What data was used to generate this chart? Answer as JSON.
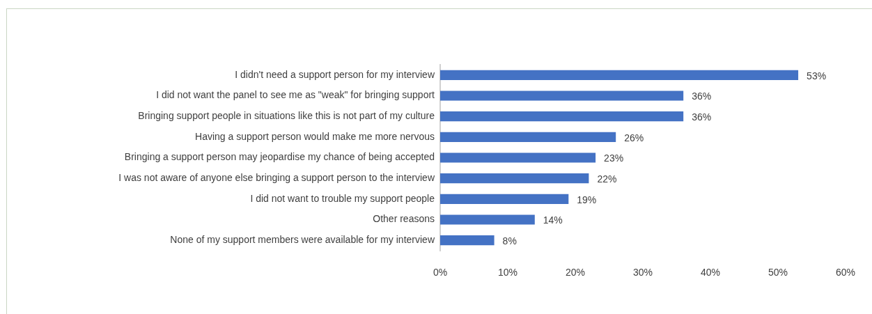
{
  "chart_data": {
    "type": "bar",
    "orientation": "horizontal",
    "categories": [
      "I didn't need a support person for my interview",
      "I did not want the panel to see me as \"weak\" for bringing support",
      "Bringing support people in situations like this is not part of my culture",
      "Having a support person would make me more nervous",
      "Bringing a support person may jeopardise my chance of being accepted",
      "I was not aware of anyone else bringing a support person to the interview",
      "I did not want to trouble my support people",
      "Other reasons",
      "None of my support members were available for my interview"
    ],
    "values": [
      53,
      36,
      36,
      26,
      23,
      22,
      19,
      14,
      8
    ],
    "value_labels": [
      "53%",
      "36%",
      "36%",
      "26%",
      "23%",
      "22%",
      "19%",
      "14%",
      "8%"
    ],
    "color": "#4472c4",
    "xlim": [
      0,
      60
    ],
    "xticks": [
      {
        "value": 0,
        "label": "0%"
      },
      {
        "value": 10,
        "label": "10%"
      },
      {
        "value": 20,
        "label": "20%"
      },
      {
        "value": 30,
        "label": "30%"
      },
      {
        "value": 40,
        "label": "40%"
      },
      {
        "value": 50,
        "label": "50%"
      },
      {
        "value": 60,
        "label": "60%"
      }
    ],
    "grid": false,
    "legend": false
  }
}
